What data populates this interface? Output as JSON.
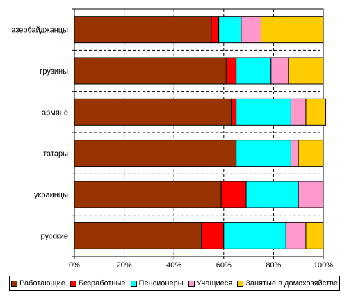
{
  "chart_data": {
    "type": "bar",
    "orientation": "horizontal",
    "stacked": "percent",
    "title": "",
    "xlabel": "",
    "ylabel": "",
    "categories": [
      "азербайджанцы",
      "грузины",
      "армяне",
      "татары",
      "украинцы",
      "русские"
    ],
    "series": [
      {
        "name": "Работающие",
        "color": "#993300",
        "values": [
          55,
          61,
          63,
          65,
          59,
          51
        ]
      },
      {
        "name": "Безработные",
        "color": "#FF0000",
        "values": [
          3,
          4,
          2,
          0,
          10,
          9
        ]
      },
      {
        "name": "Пенсионеры",
        "color": "#00FFFF",
        "values": [
          9,
          14,
          22,
          22,
          21,
          25
        ]
      },
      {
        "name": "Учащиеся",
        "color": "#FF99CC",
        "values": [
          8,
          7,
          6,
          3,
          10,
          8
        ]
      },
      {
        "name": "Занятые в домохозяйстве",
        "color": "#FFCC00",
        "values": [
          25,
          14,
          8,
          10,
          0,
          7
        ]
      }
    ],
    "xlim": [
      0,
      100
    ],
    "xticks": [
      "0%",
      "20%",
      "40%",
      "60%",
      "80%",
      "100%"
    ],
    "grid": "vertical dashed",
    "legend": "bottom"
  }
}
